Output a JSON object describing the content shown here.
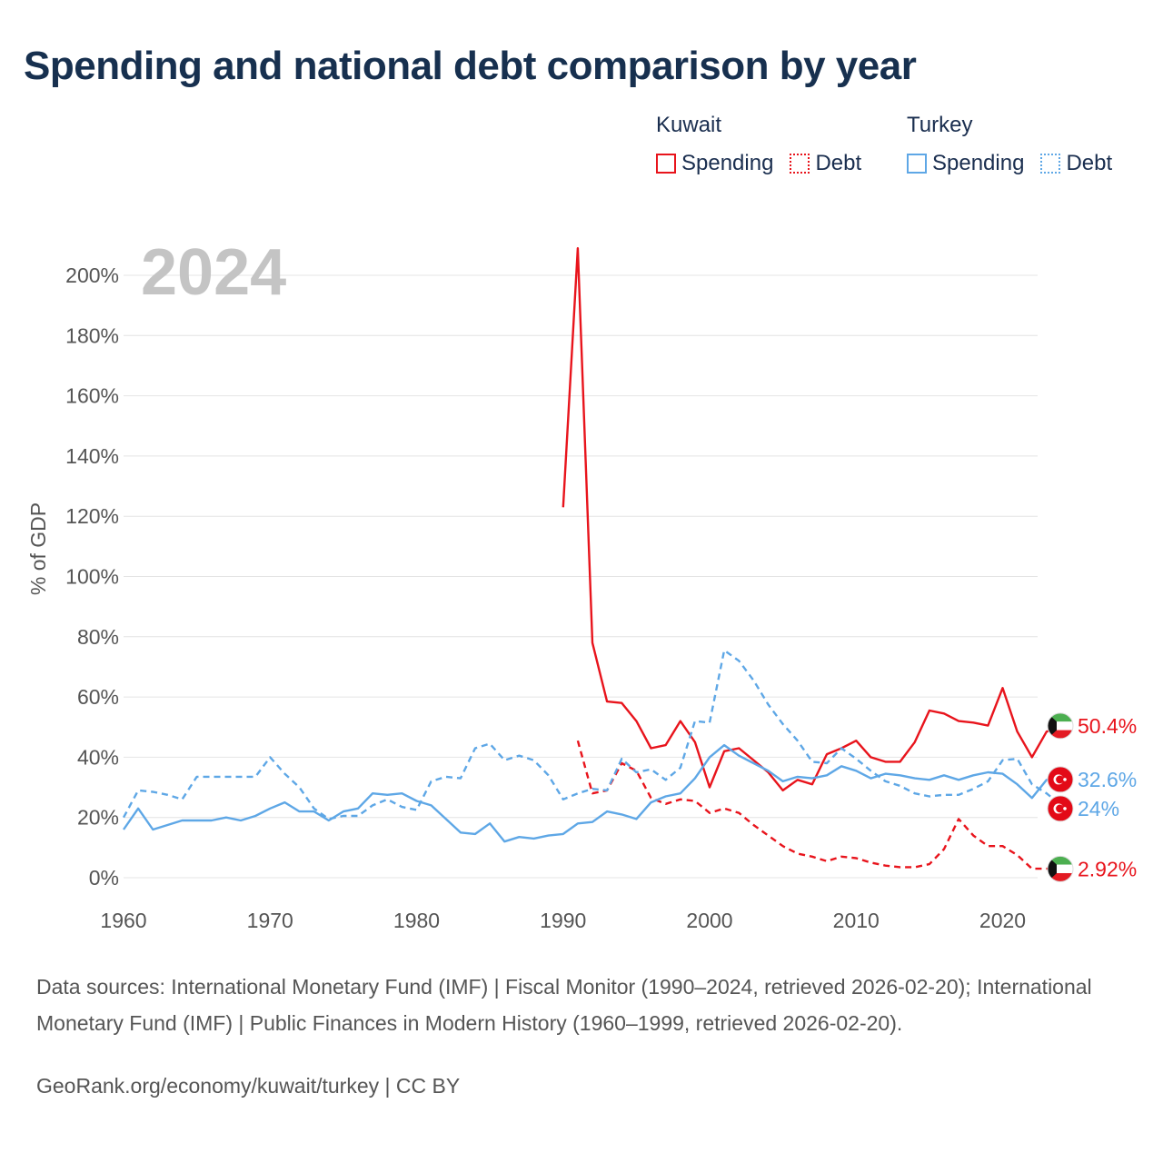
{
  "title": "Spending and national debt comparison by year",
  "legend": {
    "groups": [
      {
        "country": "Kuwait",
        "color": "#e8141c",
        "items": [
          {
            "label": "Spending",
            "style": "solid"
          },
          {
            "label": "Debt",
            "style": "dotted"
          }
        ]
      },
      {
        "country": "Turkey",
        "color": "#5ea7e6",
        "items": [
          {
            "label": "Spending",
            "style": "solid"
          },
          {
            "label": "Debt",
            "style": "dotted"
          }
        ]
      }
    ]
  },
  "source": "Data sources: International Monetary Fund (IMF) | Fiscal Monitor (1990–2024, retrieved 2026-02-20); International Monetary Fund (IMF) | Public Finances in Modern History (1960–1999, retrieved 2026-02-20).",
  "footer": "GeoRank.org/economy/kuwait/turkey | CC BY",
  "chart_data": {
    "type": "line",
    "title": "Spending and national debt comparison by year",
    "year_label": "2024",
    "xlabel": "",
    "ylabel": "% of GDP",
    "xlim": [
      1960,
      2024
    ],
    "ylim": [
      0,
      200
    ],
    "x_ticks": [
      1960,
      1970,
      1980,
      1990,
      2000,
      2010,
      2020
    ],
    "y_ticks": [
      0,
      20,
      40,
      60,
      80,
      100,
      120,
      140,
      160,
      180,
      200
    ],
    "y_tick_labels": [
      "0%",
      "20%",
      "40%",
      "60%",
      "80%",
      "100%",
      "120%",
      "140%",
      "160%",
      "180%",
      "200%"
    ],
    "grid": true,
    "series": [
      {
        "name": "Kuwait Spending",
        "country": "Kuwait",
        "metric": "Spending",
        "color": "#e8141c",
        "dash": "solid",
        "end_label": "50.4%",
        "flag": "kuwait",
        "x": [
          1990,
          1991,
          1992,
          1993,
          1994,
          1995,
          1996,
          1997,
          1998,
          1999,
          2000,
          2001,
          2002,
          2003,
          2004,
          2005,
          2006,
          2007,
          2008,
          2009,
          2010,
          2011,
          2012,
          2013,
          2014,
          2015,
          2016,
          2017,
          2018,
          2019,
          2020,
          2021,
          2022,
          2023,
          2024
        ],
        "y": [
          123,
          209,
          78,
          58.5,
          58,
          52,
          43,
          44,
          52,
          45,
          30,
          42,
          43,
          39,
          35,
          29,
          32.5,
          31,
          41,
          43,
          45.5,
          40,
          38.5,
          38.5,
          45,
          55.5,
          54.5,
          52,
          51.5,
          50.5,
          63,
          48.5,
          40,
          48.5,
          50.4
        ]
      },
      {
        "name": "Kuwait Debt",
        "country": "Kuwait",
        "metric": "Debt",
        "color": "#e8141c",
        "dash": "dashed",
        "end_label": "2.92%",
        "flag": "kuwait",
        "x": [
          1991,
          1992,
          1993,
          1994,
          1995,
          1996,
          1997,
          1998,
          1999,
          2000,
          2001,
          2002,
          2003,
          2004,
          2005,
          2006,
          2007,
          2008,
          2009,
          2010,
          2011,
          2012,
          2013,
          2014,
          2015,
          2016,
          2017,
          2018,
          2019,
          2020,
          2021,
          2022,
          2023,
          2024
        ],
        "y": [
          45.5,
          28,
          29,
          38,
          35.5,
          26.5,
          24.5,
          26,
          25.5,
          21.5,
          23,
          21.5,
          17.5,
          14,
          10.5,
          8,
          7,
          5.5,
          7,
          6.5,
          5,
          4,
          3.5,
          3.5,
          4.5,
          9.5,
          19.5,
          14,
          10.5,
          10.5,
          7.5,
          3,
          3,
          2.92
        ]
      },
      {
        "name": "Turkey Spending",
        "country": "Turkey",
        "metric": "Spending",
        "color": "#5ea7e6",
        "dash": "solid",
        "end_label": "32.6%",
        "flag": "turkey",
        "x": [
          1960,
          1961,
          1962,
          1963,
          1964,
          1965,
          1966,
          1967,
          1968,
          1969,
          1970,
          1971,
          1972,
          1973,
          1974,
          1975,
          1976,
          1977,
          1978,
          1979,
          1980,
          1981,
          1982,
          1983,
          1984,
          1985,
          1986,
          1987,
          1988,
          1989,
          1990,
          1991,
          1992,
          1993,
          1994,
          1995,
          1996,
          1997,
          1998,
          1999,
          2000,
          2001,
          2002,
          2003,
          2004,
          2005,
          2006,
          2007,
          2008,
          2009,
          2010,
          2011,
          2012,
          2013,
          2014,
          2015,
          2016,
          2017,
          2018,
          2019,
          2020,
          2021,
          2022,
          2023,
          2024
        ],
        "y": [
          16,
          23,
          16,
          17.5,
          19,
          19,
          19,
          20,
          19,
          20.5,
          23,
          25,
          22,
          22,
          19,
          22,
          23,
          28,
          27.5,
          28,
          25.5,
          24,
          19.5,
          15,
          14.5,
          18,
          12,
          13.5,
          13,
          14,
          14.5,
          18,
          18.5,
          22,
          21,
          19.5,
          25,
          27,
          28,
          33,
          40,
          44,
          40.5,
          38,
          35.5,
          32,
          33.5,
          33,
          34,
          37,
          35.5,
          33,
          34.5,
          34,
          33,
          32.5,
          34,
          32.5,
          34,
          35,
          34.5,
          31,
          26.5,
          32.5,
          32.6
        ]
      },
      {
        "name": "Turkey Debt",
        "country": "Turkey",
        "metric": "Debt",
        "color": "#5ea7e6",
        "dash": "dashed",
        "end_label": "24%",
        "flag": "turkey",
        "x": [
          1960,
          1961,
          1962,
          1963,
          1964,
          1965,
          1966,
          1967,
          1968,
          1969,
          1970,
          1971,
          1972,
          1973,
          1974,
          1975,
          1976,
          1977,
          1978,
          1979,
          1980,
          1981,
          1982,
          1983,
          1984,
          1985,
          1986,
          1987,
          1988,
          1989,
          1990,
          1991,
          1992,
          1993,
          1994,
          1995,
          1996,
          1997,
          1998,
          1999,
          2000,
          2001,
          2002,
          2003,
          2004,
          2005,
          2006,
          2007,
          2008,
          2009,
          2010,
          2011,
          2012,
          2013,
          2014,
          2015,
          2016,
          2017,
          2018,
          2019,
          2020,
          2021,
          2022,
          2023,
          2024
        ],
        "y": [
          20,
          29,
          28.5,
          27.5,
          26,
          33.5,
          33.5,
          33.5,
          33.5,
          33.5,
          40,
          34.5,
          30,
          23,
          19.5,
          20.5,
          20.5,
          24,
          26,
          23.5,
          22.5,
          32,
          33.5,
          33,
          43,
          44.5,
          39,
          40.5,
          39,
          34,
          26,
          28,
          29.5,
          29,
          39.5,
          35,
          36,
          32.5,
          36.5,
          52,
          51.5,
          75.5,
          72,
          65.5,
          57.5,
          51,
          45.5,
          38.5,
          38,
          43,
          39.5,
          35.5,
          32,
          30.5,
          28,
          27,
          27.5,
          27.5,
          29.5,
          32,
          39,
          39.5,
          31,
          28,
          24
        ]
      }
    ]
  }
}
